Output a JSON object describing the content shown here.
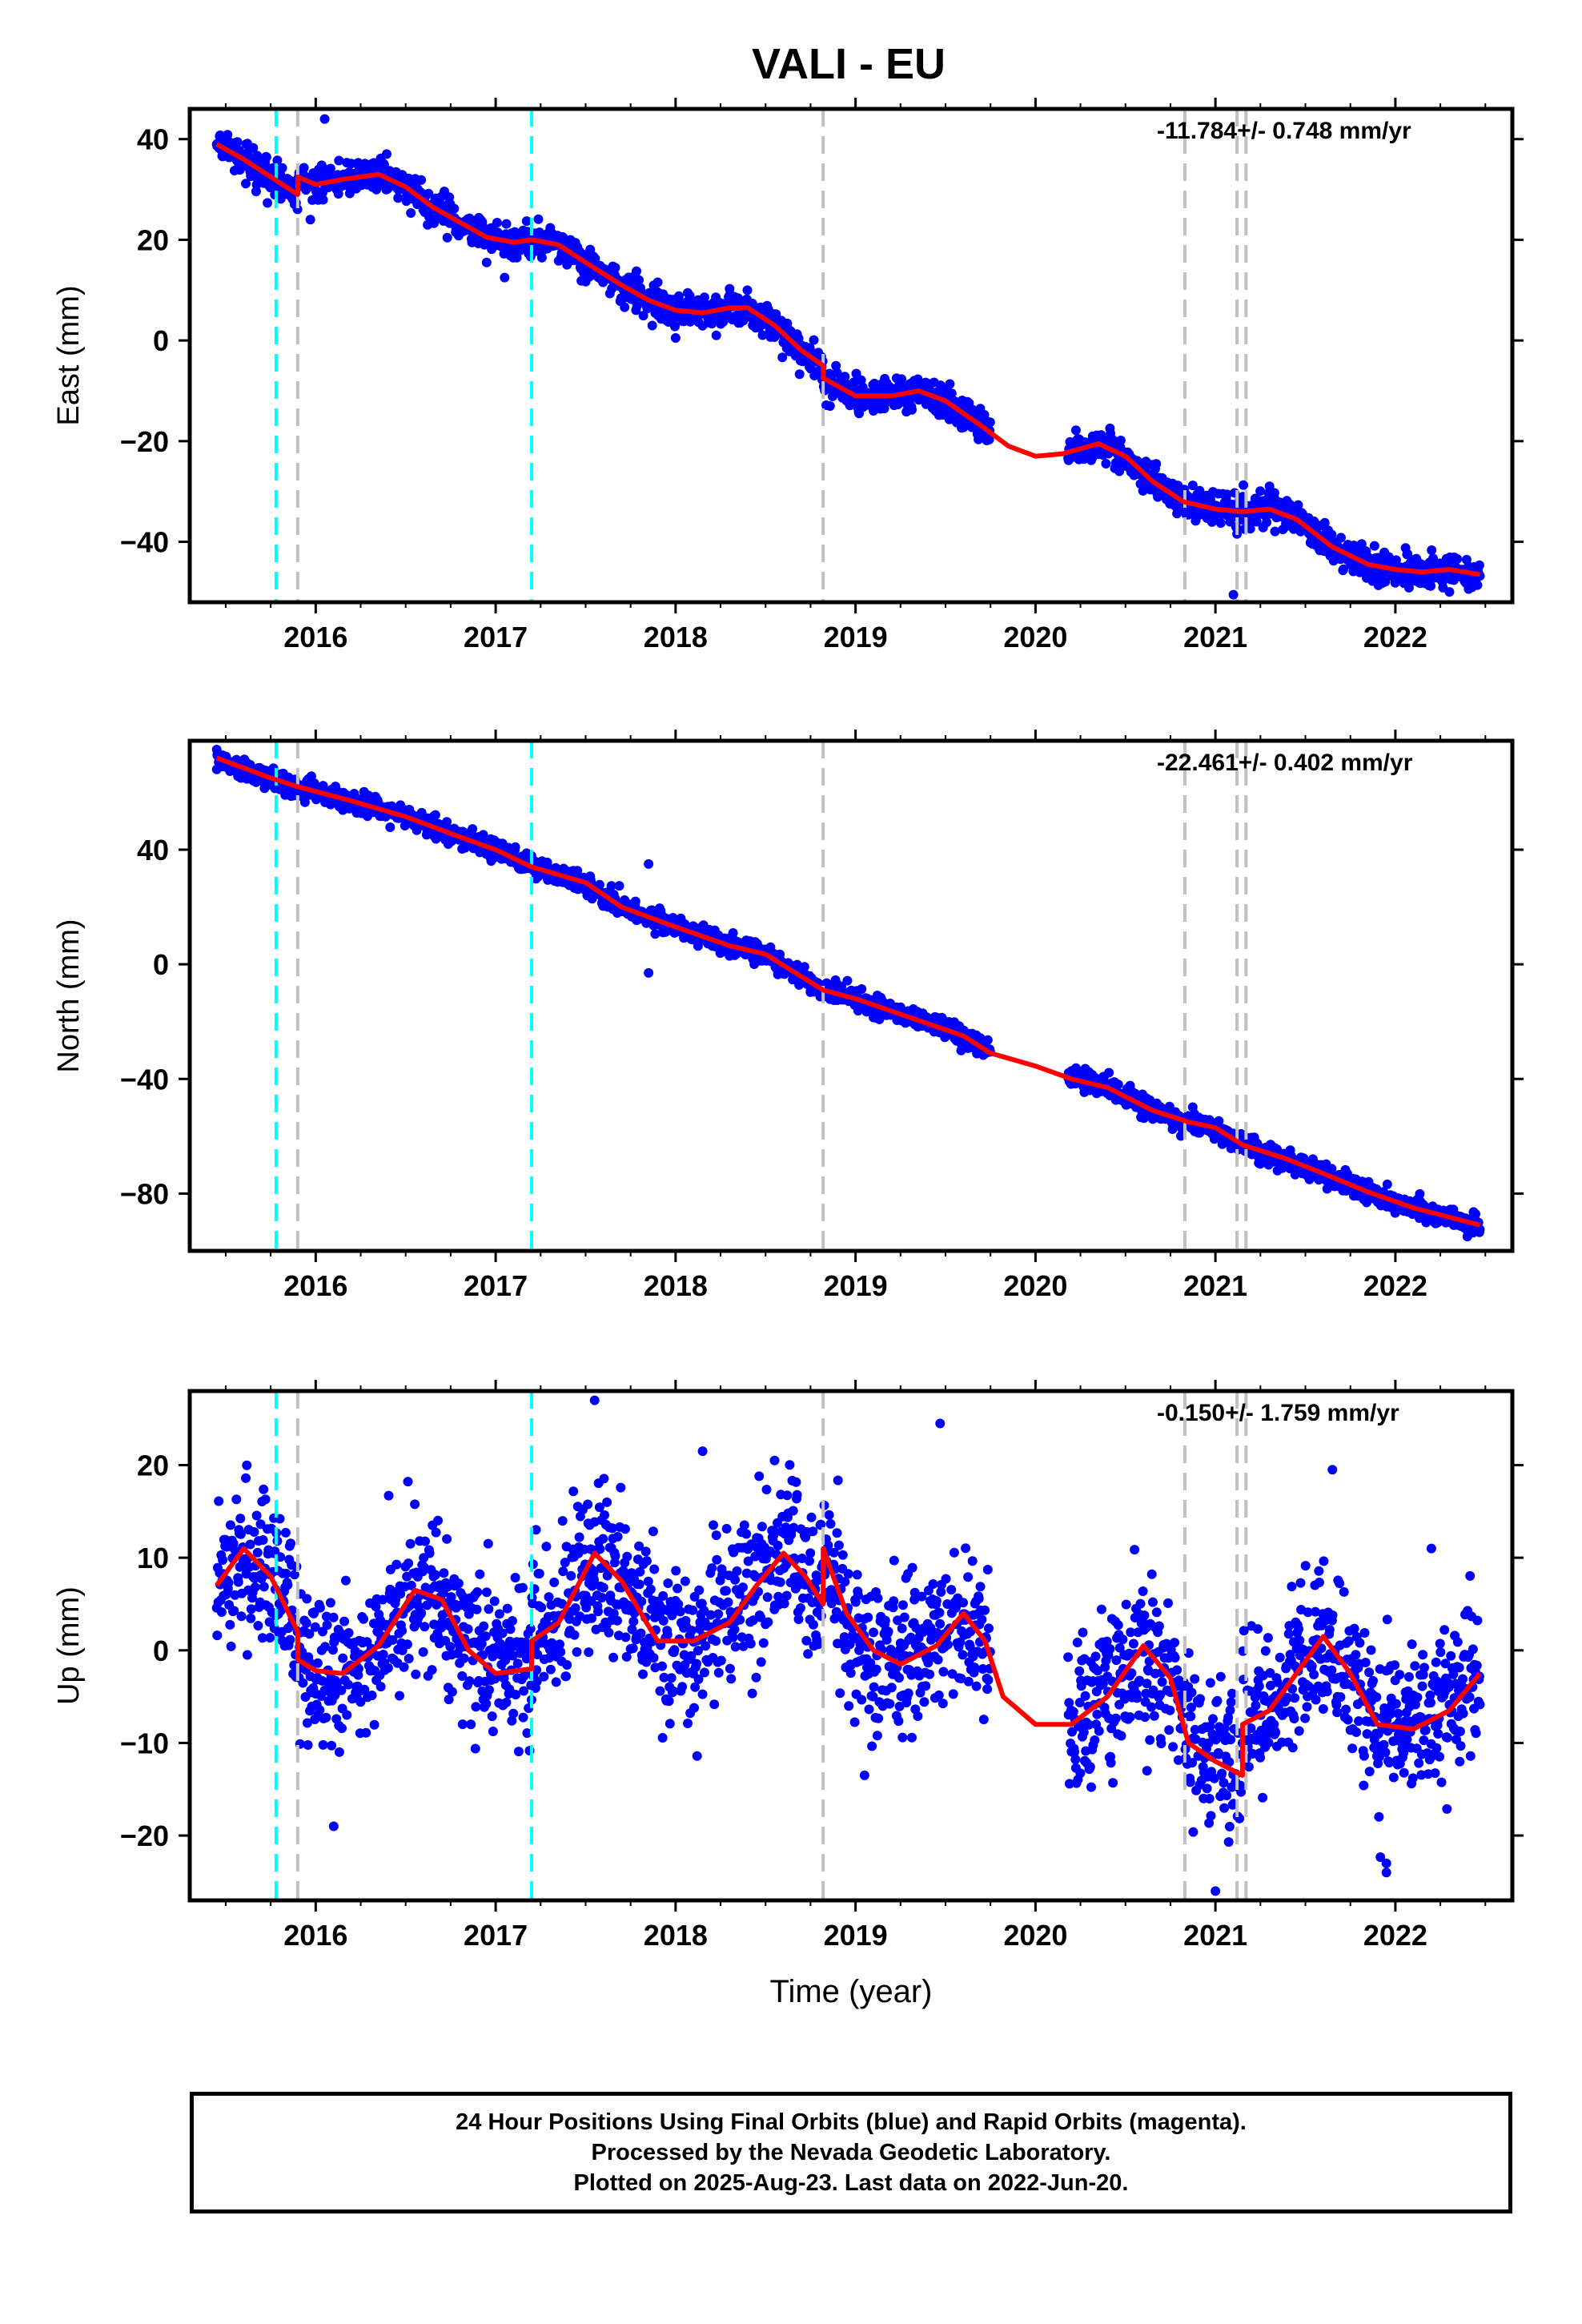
{
  "title": "VALI - EU",
  "footer": {
    "line1": "24 Hour Positions Using Final Orbits (blue) and Rapid Orbits (magenta).",
    "line2": "Processed by the Nevada Geodetic Laboratory.",
    "line3": "Plotted on 2025-Aug-23. Last data on 2022-Jun-20."
  },
  "colors": {
    "data_points": "#0000ff",
    "fit_line": "#ff0000",
    "equipment_change_lines": "#00ffff",
    "event_lines": "#c0c0c0"
  },
  "chart_data": [
    {
      "type": "scatter",
      "panel": "east",
      "ylabel": "East (mm)",
      "rate_label": "-11.784+/- 0.748 mm/yr",
      "xlim": [
        2015.3,
        2022.65
      ],
      "ylim": [
        -52,
        46
      ],
      "xticks": [
        2016,
        2017,
        2018,
        2019,
        2020,
        2021,
        2022
      ],
      "yticks": [
        -40,
        -20,
        0,
        20,
        40
      ],
      "grid": false,
      "data_gap": [
        2019.75,
        2020.18
      ],
      "scatter_spread": 1.6,
      "fit": [
        [
          2015.45,
          39.0
        ],
        [
          2015.6,
          36.0
        ],
        [
          2015.75,
          32.5
        ],
        [
          2015.9,
          29.0
        ],
        [
          2015.9,
          32.5
        ],
        [
          2016.0,
          31.0
        ],
        [
          2016.15,
          32.0
        ],
        [
          2016.35,
          33.0
        ],
        [
          2016.5,
          30.5
        ],
        [
          2016.65,
          26.5
        ],
        [
          2016.8,
          23.5
        ],
        [
          2016.95,
          20.5
        ],
        [
          2017.1,
          19.5
        ],
        [
          2017.2,
          20.0
        ],
        [
          2017.35,
          19.0
        ],
        [
          2017.5,
          15.5
        ],
        [
          2017.7,
          11.0
        ],
        [
          2017.85,
          8.0
        ],
        [
          2018.0,
          6.0
        ],
        [
          2018.15,
          5.5
        ],
        [
          2018.3,
          6.5
        ],
        [
          2018.4,
          6.5
        ],
        [
          2018.55,
          3.0
        ],
        [
          2018.7,
          -2.0
        ],
        [
          2018.82,
          -5.0
        ],
        [
          2018.82,
          -7.5
        ],
        [
          2019.0,
          -11.0
        ],
        [
          2019.2,
          -11.0
        ],
        [
          2019.35,
          -10.0
        ],
        [
          2019.5,
          -12.0
        ],
        [
          2019.7,
          -17.0
        ],
        [
          2019.85,
          -21.0
        ],
        [
          2020.0,
          -23.0
        ],
        [
          2020.15,
          -22.5
        ],
        [
          2020.35,
          -20.5
        ],
        [
          2020.5,
          -23.0
        ],
        [
          2020.65,
          -28.0
        ],
        [
          2020.82,
          -32.0
        ],
        [
          2021.0,
          -33.5
        ],
        [
          2021.15,
          -34.0
        ],
        [
          2021.3,
          -33.5
        ],
        [
          2021.45,
          -35.5
        ],
        [
          2021.65,
          -41.0
        ],
        [
          2021.85,
          -44.5
        ],
        [
          2022.0,
          -45.5
        ],
        [
          2022.15,
          -46.0
        ],
        [
          2022.3,
          -45.5
        ],
        [
          2022.47,
          -46.5
        ]
      ],
      "outliers": [
        [
          2016.05,
          44.0
        ],
        [
          2016.95,
          15.5
        ],
        [
          2017.05,
          12.5
        ],
        [
          2018.0,
          0.5
        ],
        [
          2021.1,
          -50.5
        ],
        [
          2015.97,
          24.0
        ]
      ],
      "equipment_changes": [
        2015.78,
        2017.2
      ],
      "events": [
        2015.9,
        2018.82,
        2020.83,
        2021.12,
        2021.17
      ]
    },
    {
      "type": "scatter",
      "panel": "north",
      "ylabel": "North (mm)",
      "rate_label": "-22.461+/- 0.402 mm/yr",
      "xlim": [
        2015.3,
        2022.65
      ],
      "ylim": [
        -100,
        78
      ],
      "xticks": [
        2016,
        2017,
        2018,
        2019,
        2020,
        2021,
        2022
      ],
      "yticks": [
        -80,
        -40,
        0,
        40
      ],
      "grid": false,
      "data_gap": [
        2019.75,
        2020.18
      ],
      "scatter_spread": 1.8,
      "fit": [
        [
          2015.45,
          72.0
        ],
        [
          2015.75,
          65.0
        ],
        [
          2015.9,
          62.0
        ],
        [
          2016.2,
          57.0
        ],
        [
          2016.5,
          51.5
        ],
        [
          2016.8,
          44.5
        ],
        [
          2017.0,
          40.0
        ],
        [
          2017.2,
          34.0
        ],
        [
          2017.5,
          28.5
        ],
        [
          2017.7,
          20.0
        ],
        [
          2018.0,
          13.0
        ],
        [
          2018.3,
          6.5
        ],
        [
          2018.5,
          3.5
        ],
        [
          2018.82,
          -9.0
        ],
        [
          2019.0,
          -12.0
        ],
        [
          2019.3,
          -18.5
        ],
        [
          2019.6,
          -25.0
        ],
        [
          2019.75,
          -31.0
        ],
        [
          2020.0,
          -35.5
        ],
        [
          2020.2,
          -40.0
        ],
        [
          2020.4,
          -43.0
        ],
        [
          2020.65,
          -51.0
        ],
        [
          2020.85,
          -55.0
        ],
        [
          2021.0,
          -57.0
        ],
        [
          2021.15,
          -63.0
        ],
        [
          2021.4,
          -68.0
        ],
        [
          2021.6,
          -73.0
        ],
        [
          2021.85,
          -79.5
        ],
        [
          2022.1,
          -85.0
        ],
        [
          2022.47,
          -91.0
        ]
      ],
      "outliers": [
        [
          2017.85,
          -3.0
        ],
        [
          2015.45,
          68.0
        ],
        [
          2017.85,
          35.0
        ],
        [
          2021.03,
          -59.0
        ],
        [
          2022.4,
          -95.0
        ]
      ],
      "equipment_changes": [
        2015.78,
        2017.2
      ],
      "events": [
        2015.9,
        2018.82,
        2020.83,
        2021.12,
        2021.17
      ]
    },
    {
      "type": "scatter",
      "panel": "up",
      "xlabel": "Time (year)",
      "ylabel": "Up (mm)",
      "rate_label": "-0.150+/- 1.759 mm/yr",
      "xlim": [
        2015.3,
        2022.65
      ],
      "ylim": [
        -27,
        28
      ],
      "xticks": [
        2016,
        2017,
        2018,
        2019,
        2020,
        2021,
        2022
      ],
      "yticks": [
        -20,
        -10,
        0,
        10,
        20
      ],
      "grid": false,
      "data_gap": [
        2019.75,
        2020.18
      ],
      "scatter_spread": 4.2,
      "fit": [
        [
          2015.45,
          7.0
        ],
        [
          2015.6,
          11.0
        ],
        [
          2015.75,
          8.0
        ],
        [
          2015.9,
          2.0
        ],
        [
          2015.9,
          -1.0
        ],
        [
          2016.0,
          -2.2
        ],
        [
          2016.15,
          -2.5
        ],
        [
          2016.35,
          0.5
        ],
        [
          2016.55,
          6.5
        ],
        [
          2016.7,
          5.5
        ],
        [
          2016.85,
          0.0
        ],
        [
          2017.0,
          -2.5
        ],
        [
          2017.2,
          -2.0
        ],
        [
          2017.2,
          1.0
        ],
        [
          2017.35,
          3.0
        ],
        [
          2017.55,
          10.5
        ],
        [
          2017.7,
          7.5
        ],
        [
          2017.9,
          1.0
        ],
        [
          2018.1,
          1.0
        ],
        [
          2018.3,
          3.0
        ],
        [
          2018.45,
          7.0
        ],
        [
          2018.6,
          10.5
        ],
        [
          2018.72,
          8.0
        ],
        [
          2018.82,
          5.0
        ],
        [
          2018.82,
          11.0
        ],
        [
          2018.95,
          4.0
        ],
        [
          2019.1,
          0.0
        ],
        [
          2019.25,
          -1.5
        ],
        [
          2019.45,
          0.5
        ],
        [
          2019.6,
          4.0
        ],
        [
          2019.72,
          1.0
        ],
        [
          2019.82,
          -5.0
        ],
        [
          2020.0,
          -8.0
        ],
        [
          2020.2,
          -8.0
        ],
        [
          2020.4,
          -5.0
        ],
        [
          2020.6,
          0.5
        ],
        [
          2020.75,
          -3.0
        ],
        [
          2020.85,
          -10.0
        ],
        [
          2021.0,
          -12.0
        ],
        [
          2021.15,
          -13.5
        ],
        [
          2021.15,
          -8.0
        ],
        [
          2021.3,
          -6.5
        ],
        [
          2021.45,
          -2.5
        ],
        [
          2021.6,
          1.5
        ],
        [
          2021.75,
          -2.5
        ],
        [
          2021.9,
          -8.0
        ],
        [
          2022.1,
          -8.5
        ],
        [
          2022.3,
          -6.5
        ],
        [
          2022.47,
          -2.5
        ]
      ],
      "outliers": [
        [
          2017.55,
          27.0
        ],
        [
          2019.47,
          24.5
        ],
        [
          2021.65,
          19.5
        ],
        [
          2021.95,
          -23.0
        ],
        [
          2021.95,
          -24.0
        ],
        [
          2021.0,
          -26.0
        ],
        [
          2016.1,
          -19.0
        ],
        [
          2018.55,
          20.5
        ],
        [
          2018.15,
          21.5
        ],
        [
          2020.62,
          -13.0
        ],
        [
          2019.05,
          -13.5
        ],
        [
          2022.2,
          11.0
        ]
      ],
      "equipment_changes": [
        2015.78,
        2017.2
      ],
      "events": [
        2015.9,
        2018.82,
        2020.83,
        2021.12,
        2021.17
      ]
    }
  ]
}
